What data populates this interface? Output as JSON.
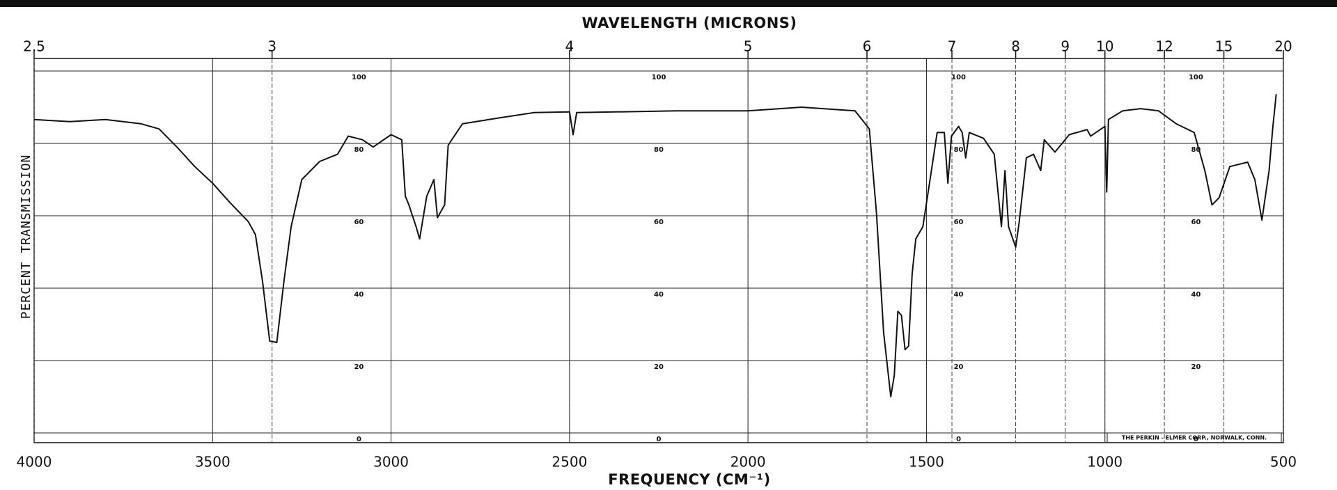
{
  "chart_data": {
    "type": "line",
    "x2label": "WAVELENGTH (MICRONS)",
    "xlabel": "FREQUENCY (CM⁻¹)",
    "ylabel": "PERCENT TRANSMISSION",
    "annotation": "THE PERKIN - ELMER CORP., NORWALK, CONN.",
    "xlim": [
      4000,
      500
    ],
    "xticks": [
      4000,
      3500,
      3000,
      2500,
      2000,
      1500,
      1000,
      500
    ],
    "x2ticks": [
      2.5,
      3,
      4,
      5,
      6,
      7,
      8,
      9,
      10,
      12,
      15,
      20
    ],
    "ylim": [
      0,
      100
    ],
    "yticks": [
      0,
      20,
      40,
      60,
      80,
      100
    ],
    "grid": true,
    "color": "#111111",
    "x": [
      4000,
      3900,
      3800,
      3700,
      3650,
      3600,
      3550,
      3500,
      3450,
      3400,
      3380,
      3360,
      3340,
      3320,
      3300,
      3280,
      3250,
      3200,
      3150,
      3120,
      3080,
      3050,
      3000,
      2970,
      2960,
      2950,
      2930,
      2920,
      2900,
      2880,
      2870,
      2850,
      2840,
      2800,
      2700,
      2600,
      2500,
      2490,
      2480,
      2200,
      2000,
      1850,
      1700,
      1660,
      1640,
      1620,
      1600,
      1590,
      1580,
      1570,
      1560,
      1550,
      1540,
      1530,
      1510,
      1490,
      1470,
      1450,
      1440,
      1430,
      1410,
      1400,
      1390,
      1380,
      1340,
      1310,
      1290,
      1280,
      1270,
      1250,
      1240,
      1220,
      1200,
      1180,
      1170,
      1140,
      1100,
      1050,
      1040,
      1000,
      995,
      990,
      950,
      900,
      850,
      800,
      750,
      720,
      700,
      680,
      650,
      600,
      580,
      560,
      540,
      530,
      520
    ],
    "values": [
      86.6,
      86,
      86.6,
      85.4,
      84,
      79,
      73.6,
      69,
      63.5,
      58.4,
      54.8,
      41.9,
      25.4,
      25,
      42,
      57,
      70,
      75,
      77,
      82,
      81,
      79,
      82.4,
      81,
      65.4,
      63,
      57,
      53.6,
      65.4,
      70,
      59.5,
      63,
      79.5,
      85.4,
      87,
      88.5,
      88.7,
      82.4,
      88.5,
      89,
      89,
      90,
      89,
      84,
      60.7,
      27.8,
      10,
      16,
      33.6,
      32.5,
      23,
      24,
      44,
      53.6,
      57,
      70,
      83,
      83,
      69,
      82,
      84.7,
      83,
      76,
      83,
      81.4,
      77,
      57,
      72.5,
      57,
      51.3,
      58.4,
      76,
      77,
      72.5,
      81,
      77.6,
      82.4,
      83.8,
      82,
      84.7,
      66.6,
      86.6,
      89,
      89.6,
      89,
      85.4,
      83,
      72.5,
      63,
      65,
      73.6,
      74.8,
      70,
      58.8,
      72.5,
      84,
      93.6
    ]
  }
}
